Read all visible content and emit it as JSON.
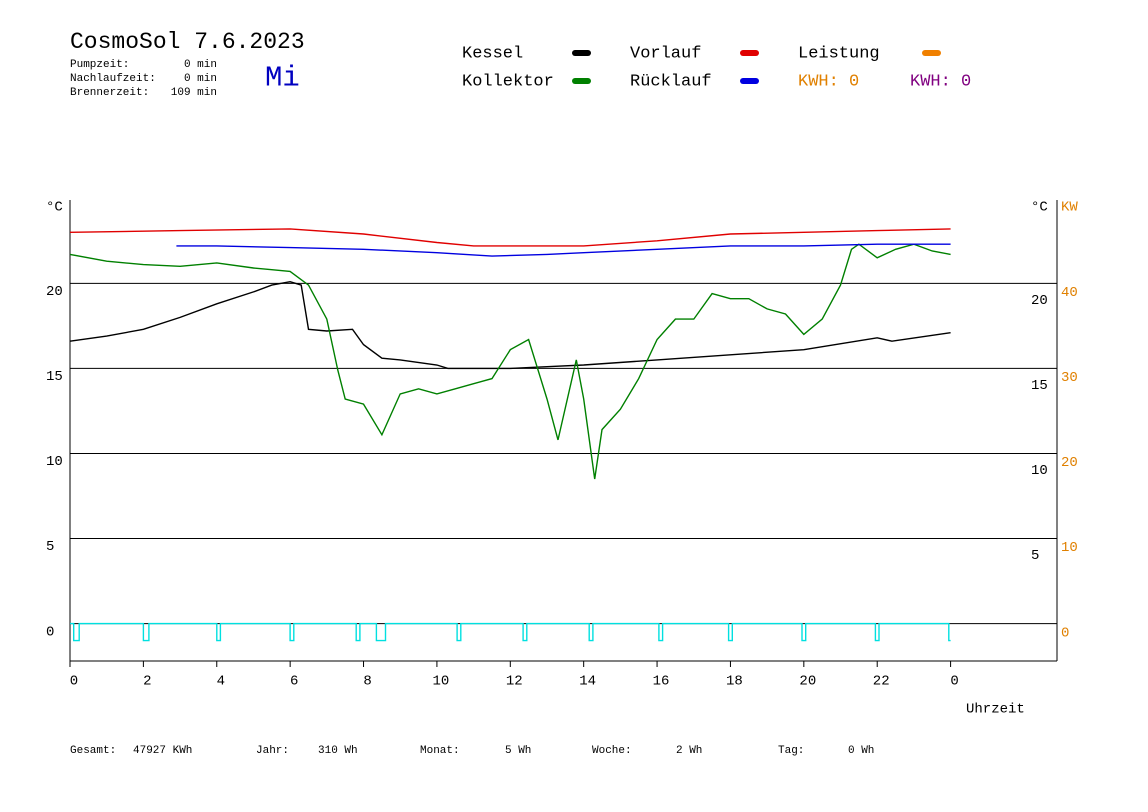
{
  "chart_data": {
    "type": "line",
    "title": "CosmoSol 7.6.2023",
    "day": "Mi",
    "info": [
      {
        "label": "Pumpzeit:",
        "value": "0 min"
      },
      {
        "label": "Nachlaufzeit:",
        "value": "0 min"
      },
      {
        "label": "Brennerzeit:",
        "value": "109 min"
      }
    ],
    "kwh_labels": [
      {
        "text": "KWH: 0",
        "color": "#e08000"
      },
      {
        "text": "KWH: 0",
        "color": "#800080"
      }
    ],
    "y_label": "°C",
    "y2_label_left": "°C",
    "y2_label": "KW",
    "x_label": "Uhrzeit",
    "xlim": [
      0,
      26.9
    ],
    "xticks": [
      0,
      2,
      4,
      6,
      8,
      10,
      12,
      14,
      16,
      18,
      20,
      22,
      {
        "value": 24,
        "label": "0"
      }
    ],
    "ylim": [
      -2.2,
      24.9
    ],
    "yticks": [
      0,
      5,
      10,
      15,
      20
    ],
    "yticks_right": [
      5,
      10,
      15,
      20
    ],
    "y2lim": [
      -4.4,
      49.8
    ],
    "y2ticks": [
      0,
      10,
      20,
      30,
      40
    ],
    "grid": true,
    "series": [
      {
        "name": "Kessel",
        "color": "#000000",
        "x": [
          0,
          1,
          2,
          3,
          4,
          5,
          5.5,
          6,
          6.3,
          6.5,
          7,
          7.7,
          8,
          8.5,
          9,
          10,
          10.3,
          12,
          13,
          14,
          16,
          18,
          20,
          22,
          22.4,
          24
        ],
        "values": [
          16.6,
          16.9,
          17.3,
          18.0,
          18.8,
          19.5,
          19.9,
          20.1,
          19.9,
          17.3,
          17.2,
          17.3,
          16.4,
          15.6,
          15.5,
          15.2,
          15.0,
          15.0,
          15.1,
          15.2,
          15.5,
          15.8,
          16.1,
          16.8,
          16.6,
          17.1
        ]
      },
      {
        "name": "Kollektor",
        "color": "#008000",
        "x": [
          0,
          1,
          2,
          3,
          4,
          5,
          5.5,
          6,
          6.5,
          7,
          7.3,
          7.5,
          8,
          8.5,
          9,
          9.5,
          10,
          10.5,
          11,
          11.5,
          12,
          12.5,
          13,
          13.3,
          13.8,
          14,
          14.3,
          14.5,
          15,
          15.5,
          16,
          16.5,
          17,
          17.5,
          18,
          18.5,
          19,
          19.5,
          20,
          20.5,
          21,
          21.3,
          21.5,
          22,
          22.5,
          23,
          23.5,
          24
        ],
        "values": [
          21.7,
          21.3,
          21.1,
          21.0,
          21.2,
          20.9,
          20.8,
          20.7,
          19.9,
          17.9,
          14.9,
          13.2,
          12.9,
          11.1,
          13.5,
          13.8,
          13.5,
          13.8,
          14.1,
          14.4,
          16.1,
          16.7,
          13.2,
          10.8,
          15.5,
          13.2,
          8.5,
          11.4,
          12.6,
          14.4,
          16.7,
          17.9,
          17.9,
          19.4,
          19.1,
          19.1,
          18.5,
          18.2,
          17.0,
          17.9,
          19.9,
          22.0,
          22.3,
          21.5,
          22.0,
          22.3,
          21.9,
          21.7
        ]
      },
      {
        "name": "Vorlauf",
        "color": "#e00000",
        "x": [
          0,
          3,
          6,
          8,
          10,
          11,
          12,
          14,
          16,
          18,
          20,
          22,
          24
        ],
        "values": [
          23.0,
          23.1,
          23.2,
          22.9,
          22.4,
          22.2,
          22.2,
          22.2,
          22.5,
          22.9,
          23.0,
          23.1,
          23.2
        ]
      },
      {
        "name": "Rücklauf",
        "color": "#0000e0",
        "x": [
          2.9,
          4,
          6,
          8,
          10,
          11.5,
          13,
          14,
          16,
          18,
          20,
          22,
          24
        ],
        "values": [
          22.2,
          22.2,
          22.1,
          22.0,
          21.8,
          21.6,
          21.7,
          21.8,
          22.0,
          22.2,
          22.2,
          22.3,
          22.3
        ]
      },
      {
        "name": "Leistung",
        "color": "#f08000",
        "x": [],
        "values": []
      },
      {
        "color": "#00e0e0",
        "x": [
          0,
          0.1,
          0.1,
          0.25,
          0.25,
          2.0,
          2.0,
          2.15,
          2.15,
          4.0,
          4.0,
          4.1,
          4.1,
          6.0,
          6.0,
          6.1,
          6.1,
          7.8,
          7.8,
          7.9,
          7.9,
          8.35,
          8.35,
          8.6,
          8.6,
          10.55,
          10.55,
          10.65,
          10.65,
          12.35,
          12.35,
          12.45,
          12.45,
          14.15,
          14.15,
          14.25,
          14.25,
          16.05,
          16.05,
          16.15,
          16.15,
          17.95,
          17.95,
          18.05,
          18.05,
          19.95,
          19.95,
          20.05,
          20.05,
          21.95,
          21.95,
          22.05,
          22.05,
          23.95,
          23.95,
          24.0
        ],
        "values": [
          0,
          0,
          -1,
          -1,
          0,
          0,
          -1,
          -1,
          0,
          0,
          -1,
          -1,
          0,
          0,
          -1,
          -1,
          0,
          0,
          -1,
          -1,
          0,
          0,
          -1,
          -1,
          0,
          0,
          -1,
          -1,
          0,
          0,
          -1,
          -1,
          0,
          0,
          -1,
          -1,
          0,
          0,
          -1,
          -1,
          0,
          0,
          -1,
          -1,
          0,
          0,
          -1,
          -1,
          0,
          0,
          -1,
          -1,
          0,
          0,
          -1,
          -1
        ]
      }
    ],
    "footer": [
      {
        "label": "Gesamt:",
        "value": "47927 KWh"
      },
      {
        "label": "Jahr:",
        "value": "310 Wh"
      },
      {
        "label": "Monat:",
        "value": "5 Wh"
      },
      {
        "label": "Woche:",
        "value": "2 Wh"
      },
      {
        "label": "Tag:",
        "value": "0 Wh"
      }
    ]
  }
}
